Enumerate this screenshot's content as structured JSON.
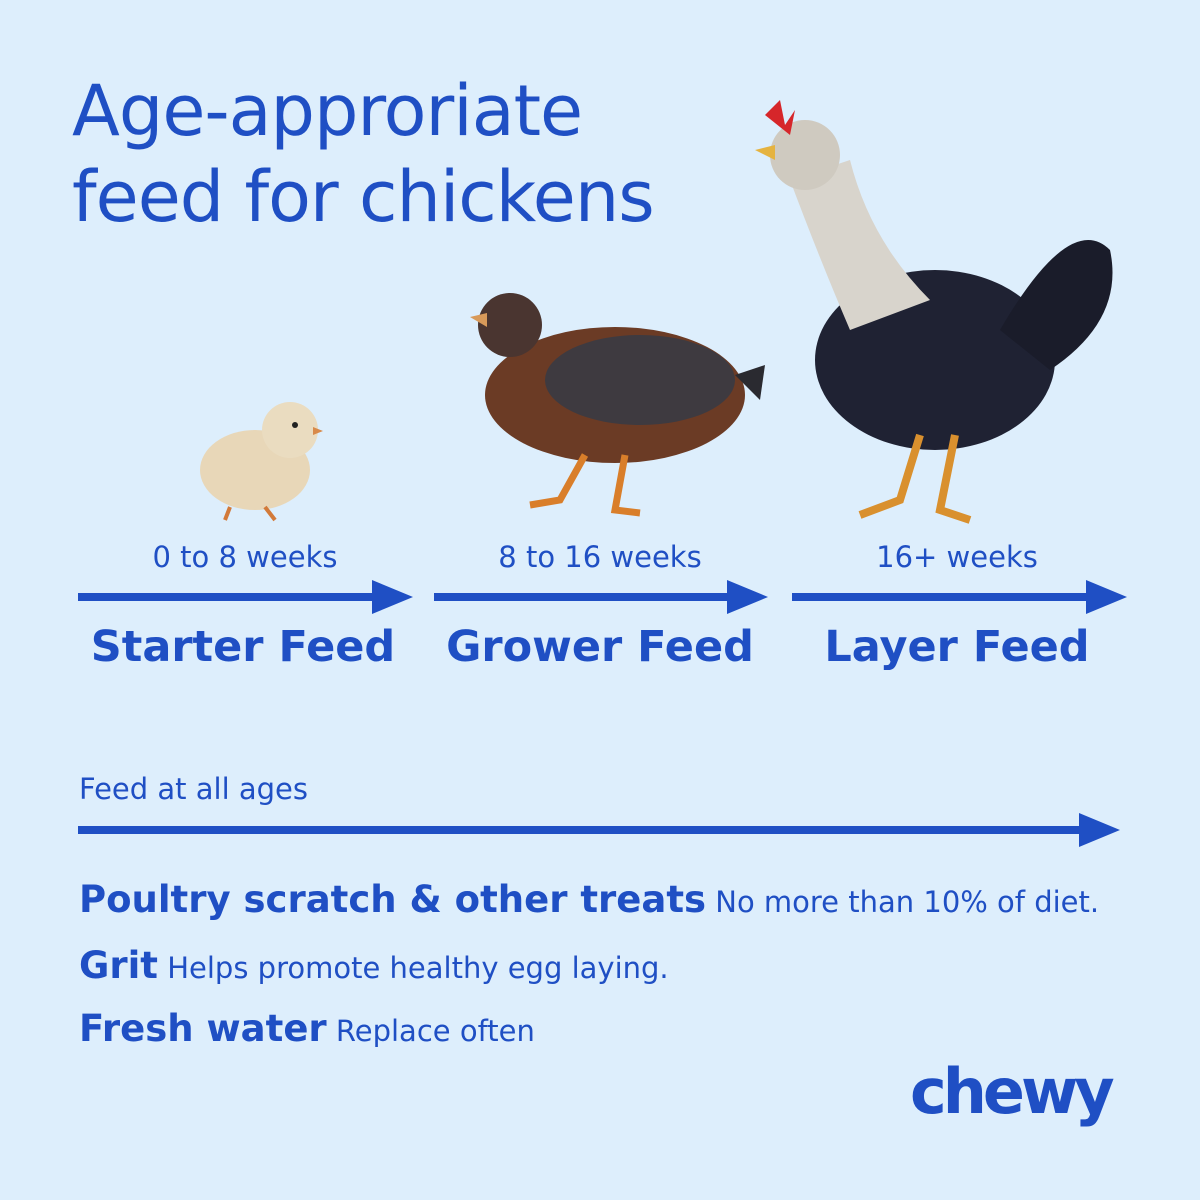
{
  "title": {
    "line1": "Age-approriate",
    "line2": "feed for chickens"
  },
  "stages": [
    {
      "weeks": "0 to 8 weeks",
      "feed": "Starter Feed"
    },
    {
      "weeks": "8 to 16 weeks",
      "feed": "Grower Feed"
    },
    {
      "weeks": "16+ weeks",
      "feed": "Layer Feed"
    }
  ],
  "all_ages": {
    "label": "Feed at all ages",
    "items": [
      {
        "name": "Poultry scratch & other treats",
        "note": "No more than 10% of diet."
      },
      {
        "name": "Grit",
        "note": "Helps promote healthy egg laying."
      },
      {
        "name": "Fresh water",
        "note": "Replace often"
      }
    ]
  },
  "logo": "chewy",
  "colors": {
    "background": "#ddeefc",
    "accent": "#1f4fc4"
  }
}
